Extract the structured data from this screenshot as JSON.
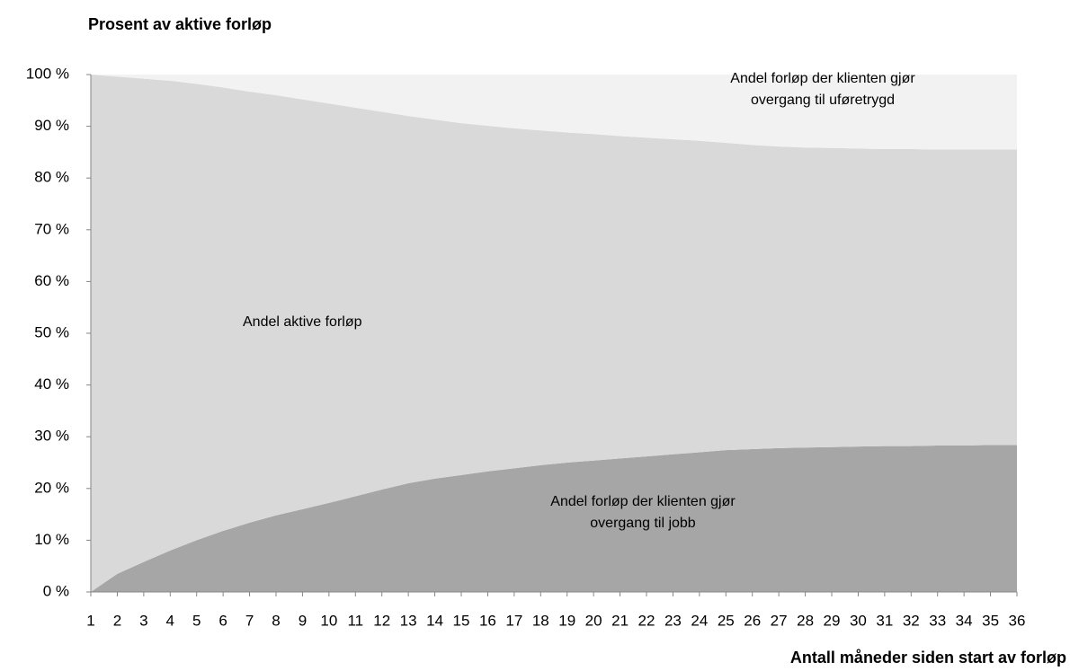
{
  "chart_data": {
    "type": "stacked_area",
    "y_axis_title": "Prosent av aktive forløp",
    "x_axis_title": "Antall måneder siden start av forløp",
    "x": [
      1,
      2,
      3,
      4,
      5,
      6,
      7,
      8,
      9,
      10,
      11,
      12,
      13,
      14,
      15,
      16,
      17,
      18,
      19,
      20,
      21,
      22,
      23,
      24,
      25,
      26,
      27,
      28,
      29,
      30,
      31,
      32,
      33,
      34,
      35,
      36
    ],
    "ylim": [
      0,
      100
    ],
    "yticks": [
      {
        "value": 0,
        "label": "0 %"
      },
      {
        "value": 10,
        "label": "10 %"
      },
      {
        "value": 20,
        "label": "20 %"
      },
      {
        "value": 30,
        "label": "30 %"
      },
      {
        "value": 40,
        "label": "40 %"
      },
      {
        "value": 50,
        "label": "50 %"
      },
      {
        "value": 60,
        "label": "60 %"
      },
      {
        "value": 70,
        "label": "70 %"
      },
      {
        "value": 80,
        "label": "80 %"
      },
      {
        "value": 90,
        "label": "90 %"
      },
      {
        "value": 100,
        "label": "100 %"
      }
    ],
    "series": [
      {
        "name": "Andel forløp der klienten gjør overgang til jobb",
        "color": "#a6a6a6",
        "values": [
          0,
          3.5,
          5.8,
          8,
          10,
          11.8,
          13.4,
          14.8,
          16,
          17.2,
          18.5,
          19.8,
          21,
          21.9,
          22.6,
          23.3,
          23.9,
          24.5,
          25,
          25.4,
          25.8,
          26.2,
          26.6,
          27,
          27.4,
          27.6,
          27.8,
          27.9,
          28,
          28.1,
          28.2,
          28.2,
          28.3,
          28.3,
          28.4,
          28.4
        ]
      },
      {
        "name": "Andel aktive forløp",
        "color": "#d9d9d9",
        "values": [
          100,
          96.1,
          93.4,
          90.8,
          88.2,
          85.7,
          83.3,
          81.2,
          79.2,
          77.2,
          75.1,
          73,
          71,
          69.4,
          68,
          66.8,
          65.7,
          64.7,
          63.8,
          63.1,
          62.3,
          61.6,
          60.9,
          60.2,
          59.4,
          58.8,
          58.3,
          58,
          57.8,
          57.6,
          57.4,
          57.4,
          57.2,
          57.2,
          57.1,
          57.1
        ]
      },
      {
        "name": "Andel forløp der klienten gjør overgang til uføretrygd",
        "color": "#f2f2f2",
        "values": [
          0,
          0.4,
          0.8,
          1.2,
          1.8,
          2.5,
          3.3,
          4,
          4.8,
          5.6,
          6.4,
          7.2,
          8,
          8.7,
          9.4,
          9.9,
          10.4,
          10.8,
          11.2,
          11.5,
          11.9,
          12.2,
          12.5,
          12.8,
          13.2,
          13.6,
          13.9,
          14.1,
          14.2,
          14.3,
          14.4,
          14.4,
          14.5,
          14.5,
          14.5,
          14.5
        ]
      }
    ]
  }
}
